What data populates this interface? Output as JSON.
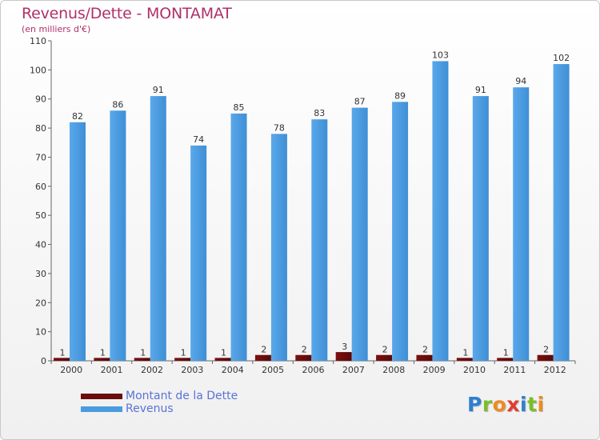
{
  "title": "Revenus/Dette - MONTAMAT",
  "subtitle": "(en milliers d'€)",
  "colors": {
    "dette": "#6b0d0d",
    "revenus": "#4a9be0",
    "title": "#b0306a",
    "legend_text": "#5a72d8"
  },
  "legend": [
    {
      "label": "Montant de la Dette",
      "color": "#6b0d0d"
    },
    {
      "label": "Revenus",
      "color": "#4a9be0"
    }
  ],
  "logo": {
    "text": "Proxiti",
    "letters": [
      "P",
      "r",
      "o",
      "x",
      "i",
      "t",
      "i"
    ],
    "colors": [
      "#2f7fd0",
      "#7abf2a",
      "#f08a1e",
      "#e23b2e",
      "#2f7fd0",
      "#7abf2a",
      "#f08a1e"
    ]
  },
  "chart_data": {
    "type": "bar",
    "categories": [
      "2000",
      "2001",
      "2002",
      "2003",
      "2004",
      "2005",
      "2006",
      "2007",
      "2008",
      "2009",
      "2010",
      "2011",
      "2012"
    ],
    "series": [
      {
        "name": "Montant de la Dette",
        "values": [
          1,
          1,
          1,
          1,
          1,
          2,
          2,
          3,
          2,
          2,
          1,
          1,
          2
        ]
      },
      {
        "name": "Revenus",
        "values": [
          82,
          86,
          91,
          74,
          85,
          78,
          83,
          87,
          89,
          103,
          91,
          94,
          102
        ]
      }
    ],
    "ylim": [
      0,
      110
    ],
    "yticks": [
      0,
      10,
      20,
      30,
      40,
      50,
      60,
      70,
      80,
      90,
      100,
      110
    ],
    "grid": false,
    "legend_position": "bottom-left"
  }
}
